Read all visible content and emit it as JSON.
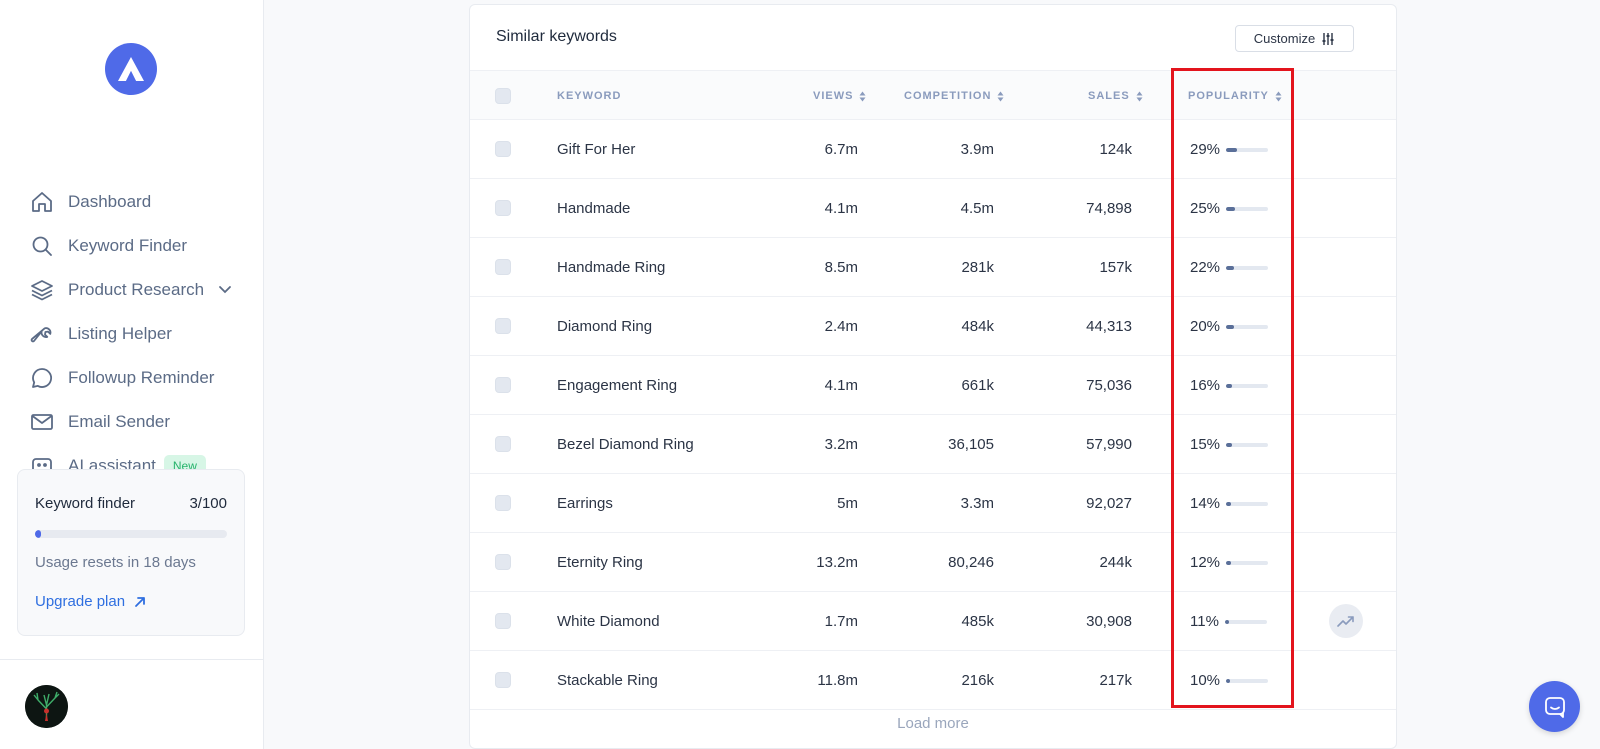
{
  "sidebar": {
    "nav": [
      {
        "label": "Dashboard",
        "icon": "home-icon"
      },
      {
        "label": "Keyword Finder",
        "icon": "search-icon"
      },
      {
        "label": "Product Research",
        "icon": "layers-icon"
      },
      {
        "label": "Listing Helper",
        "icon": "wrench-icon"
      },
      {
        "label": "Followup Reminder",
        "icon": "chat-bubble-icon"
      },
      {
        "label": "Email Sender",
        "icon": "mail-icon"
      },
      {
        "label": "AI assistant",
        "icon": "robot-icon",
        "badge": "New"
      }
    ],
    "usage": {
      "title": "Keyword finder",
      "count": "3/100",
      "used_fraction": 0.03,
      "reset_text": "Usage resets in 18 days",
      "upgrade_label": "Upgrade plan"
    }
  },
  "card": {
    "title": "Similar keywords",
    "customize_label": "Customize",
    "columns": {
      "keyword": "KEYWORD",
      "views": "VIEWS",
      "competition": "COMPETITION",
      "sales": "SALES",
      "popularity": "POPULARITY"
    },
    "rows": [
      {
        "keyword": "Gift For Her",
        "views": "6.7m",
        "competition": "3.9m",
        "sales": "124k",
        "popularity": "29%",
        "popularity_value": 29
      },
      {
        "keyword": "Handmade",
        "views": "4.1m",
        "competition": "4.5m",
        "sales": "74,898",
        "popularity": "25%",
        "popularity_value": 25
      },
      {
        "keyword": "Handmade Ring",
        "views": "8.5m",
        "competition": "281k",
        "sales": "157k",
        "popularity": "22%",
        "popularity_value": 22
      },
      {
        "keyword": "Diamond Ring",
        "views": "2.4m",
        "competition": "484k",
        "sales": "44,313",
        "popularity": "20%",
        "popularity_value": 20
      },
      {
        "keyword": "Engagement Ring",
        "views": "4.1m",
        "competition": "661k",
        "sales": "75,036",
        "popularity": "16%",
        "popularity_value": 16
      },
      {
        "keyword": "Bezel Diamond Ring",
        "views": "3.2m",
        "competition": "36,105",
        "sales": "57,990",
        "popularity": "15%",
        "popularity_value": 15
      },
      {
        "keyword": "Earrings",
        "views": "5m",
        "competition": "3.3m",
        "sales": "92,027",
        "popularity": "14%",
        "popularity_value": 14
      },
      {
        "keyword": "Eternity Ring",
        "views": "13.2m",
        "competition": "80,246",
        "sales": "244k",
        "popularity": "12%",
        "popularity_value": 12
      },
      {
        "keyword": "White Diamond",
        "views": "1.7m",
        "competition": "485k",
        "sales": "30,908",
        "popularity": "11%",
        "popularity_value": 11
      },
      {
        "keyword": "Stackable Ring",
        "views": "11.8m",
        "competition": "216k",
        "sales": "217k",
        "popularity": "10%",
        "popularity_value": 10
      }
    ],
    "load_more_label": "Load more"
  },
  "colors": {
    "accent": "#4f6ae8",
    "highlight": "#e3141d",
    "popularity_fill": "#5a6f99"
  }
}
